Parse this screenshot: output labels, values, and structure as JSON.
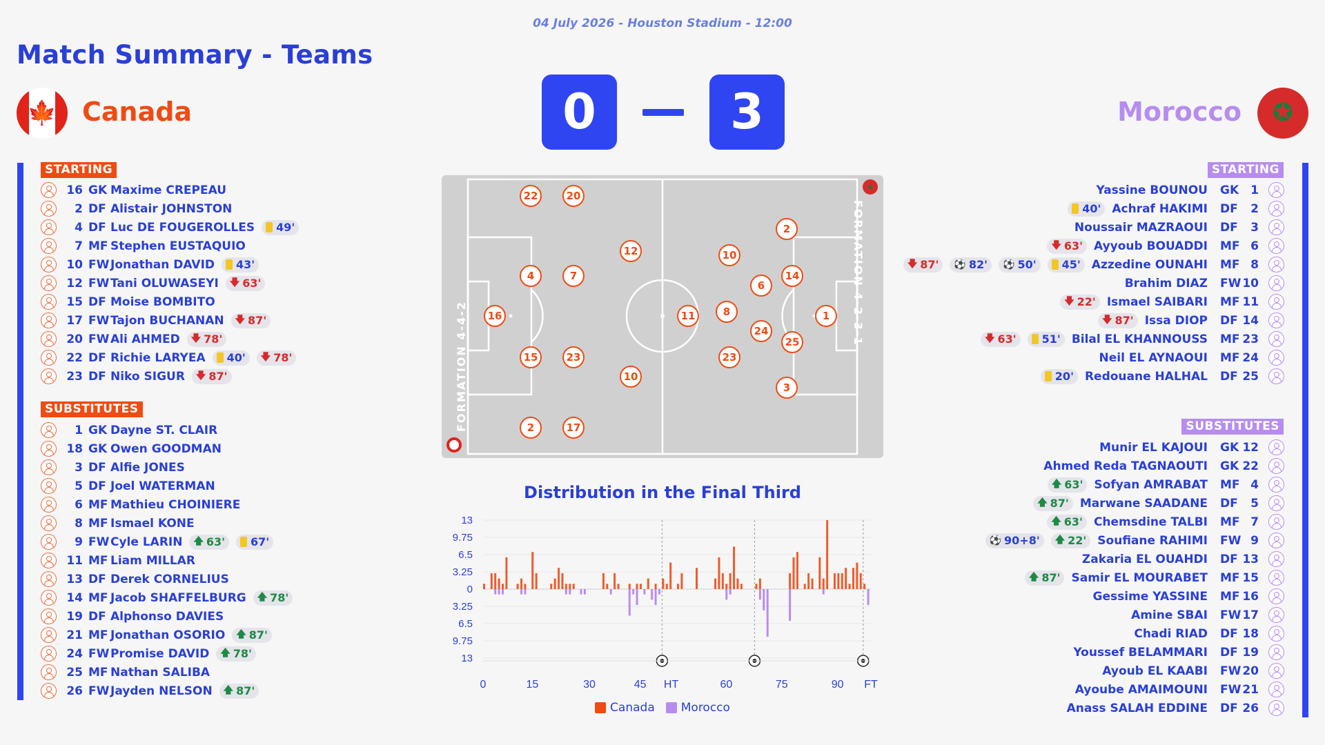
{
  "header": {
    "date_venue": "04 July 2026 - Houston Stadium - 12:00",
    "title": "Match Summary - Teams"
  },
  "home": {
    "name": "Canada",
    "score": "0",
    "formation": "FORMATION 4-4-2",
    "color": "#ef4b12",
    "starting_label": "STARTING",
    "subs_label": "SUBSTITUTES",
    "starting": [
      {
        "num": "16",
        "pos": "GK",
        "name": "Maxime CREPEAU",
        "events": []
      },
      {
        "num": "2",
        "pos": "DF",
        "name": "Alistair JOHNSTON",
        "events": []
      },
      {
        "num": "4",
        "pos": "DF",
        "name": "Luc DE FOUGEROLLES",
        "events": [
          {
            "type": "yellow",
            "text": "49'"
          }
        ]
      },
      {
        "num": "7",
        "pos": "MF",
        "name": "Stephen EUSTAQUIO",
        "events": []
      },
      {
        "num": "10",
        "pos": "FW",
        "name": "Jonathan DAVID",
        "events": [
          {
            "type": "yellow",
            "text": "43'"
          }
        ]
      },
      {
        "num": "12",
        "pos": "FW",
        "name": "Tani OLUWASEYI",
        "events": [
          {
            "type": "sub_out",
            "text": "63'"
          }
        ]
      },
      {
        "num": "15",
        "pos": "DF",
        "name": "Moise BOMBITO",
        "events": []
      },
      {
        "num": "17",
        "pos": "FW",
        "name": "Tajon BUCHANAN",
        "events": [
          {
            "type": "sub_out",
            "text": "87'"
          }
        ]
      },
      {
        "num": "20",
        "pos": "FW",
        "name": "Ali AHMED",
        "events": [
          {
            "type": "sub_out",
            "text": "78'"
          }
        ]
      },
      {
        "num": "22",
        "pos": "DF",
        "name": "Richie LARYEA",
        "events": [
          {
            "type": "yellow",
            "text": "40'"
          },
          {
            "type": "sub_out",
            "text": "78'"
          }
        ]
      },
      {
        "num": "23",
        "pos": "DF",
        "name": "Niko SIGUR",
        "events": [
          {
            "type": "sub_out",
            "text": "87'"
          }
        ]
      }
    ],
    "substitutes": [
      {
        "num": "1",
        "pos": "GK",
        "name": "Dayne ST. CLAIR",
        "events": []
      },
      {
        "num": "18",
        "pos": "GK",
        "name": "Owen GOODMAN",
        "events": []
      },
      {
        "num": "3",
        "pos": "DF",
        "name": "Alfie JONES",
        "events": []
      },
      {
        "num": "5",
        "pos": "DF",
        "name": "Joel WATERMAN",
        "events": []
      },
      {
        "num": "6",
        "pos": "MF",
        "name": "Mathieu CHOINIERE",
        "events": []
      },
      {
        "num": "8",
        "pos": "MF",
        "name": "Ismael KONE",
        "events": []
      },
      {
        "num": "9",
        "pos": "FW",
        "name": "Cyle LARIN",
        "events": [
          {
            "type": "sub_in",
            "text": "63'"
          },
          {
            "type": "yellow",
            "text": "67'"
          }
        ]
      },
      {
        "num": "11",
        "pos": "MF",
        "name": "Liam MILLAR",
        "events": []
      },
      {
        "num": "13",
        "pos": "DF",
        "name": "Derek CORNELIUS",
        "events": []
      },
      {
        "num": "14",
        "pos": "MF",
        "name": "Jacob SHAFFELBURG",
        "events": [
          {
            "type": "sub_in",
            "text": "78'"
          }
        ]
      },
      {
        "num": "19",
        "pos": "DF",
        "name": "Alphonso DAVIES",
        "events": []
      },
      {
        "num": "21",
        "pos": "MF",
        "name": "Jonathan OSORIO",
        "events": [
          {
            "type": "sub_in",
            "text": "87'"
          }
        ]
      },
      {
        "num": "24",
        "pos": "FW",
        "name": "Promise DAVID",
        "events": [
          {
            "type": "sub_in",
            "text": "78'"
          }
        ]
      },
      {
        "num": "25",
        "pos": "MF",
        "name": "Nathan SALIBA",
        "events": []
      },
      {
        "num": "26",
        "pos": "FW",
        "name": "Jayden NELSON",
        "events": [
          {
            "type": "sub_in",
            "text": "87'"
          }
        ]
      }
    ]
  },
  "away": {
    "name": "Morocco",
    "score": "3",
    "formation": "FORMATION 4-2-3-1",
    "color": "#b78cf0",
    "starting_label": "STARTING",
    "subs_label": "SUBSTITUTES",
    "starting": [
      {
        "num": "1",
        "pos": "GK",
        "name": "Yassine BOUNOU",
        "events": []
      },
      {
        "num": "2",
        "pos": "DF",
        "name": "Achraf HAKIMI",
        "events": [
          {
            "type": "yellow",
            "text": "40'"
          }
        ]
      },
      {
        "num": "3",
        "pos": "DF",
        "name": "Noussair MAZRAOUI",
        "events": []
      },
      {
        "num": "6",
        "pos": "MF",
        "name": "Ayyoub BOUADDI",
        "events": [
          {
            "type": "sub_out",
            "text": "63'"
          }
        ]
      },
      {
        "num": "8",
        "pos": "MF",
        "name": "Azzedine OUNAHI",
        "events": [
          {
            "type": "sub_out",
            "text": "87'"
          },
          {
            "type": "goal",
            "text": "82'"
          },
          {
            "type": "goal",
            "text": "50'"
          },
          {
            "type": "yellow",
            "text": "45'"
          }
        ]
      },
      {
        "num": "10",
        "pos": "FW",
        "name": "Brahim DIAZ",
        "events": []
      },
      {
        "num": "11",
        "pos": "MF",
        "name": "Ismael SAIBARI",
        "events": [
          {
            "type": "sub_out",
            "text": "22'"
          }
        ]
      },
      {
        "num": "14",
        "pos": "DF",
        "name": "Issa DIOP",
        "events": [
          {
            "type": "sub_out",
            "text": "87'"
          }
        ]
      },
      {
        "num": "23",
        "pos": "MF",
        "name": "Bilal EL KHANNOUSS",
        "events": [
          {
            "type": "sub_out",
            "text": "63'"
          },
          {
            "type": "yellow",
            "text": "51'"
          }
        ]
      },
      {
        "num": "24",
        "pos": "MF",
        "name": "Neil EL AYNAOUI",
        "events": []
      },
      {
        "num": "25",
        "pos": "DF",
        "name": "Redouane HALHAL",
        "events": [
          {
            "type": "yellow",
            "text": "20'"
          }
        ]
      }
    ],
    "substitutes": [
      {
        "num": "12",
        "pos": "GK",
        "name": "Munir EL KAJOUI",
        "events": []
      },
      {
        "num": "22",
        "pos": "GK",
        "name": "Ahmed Reda TAGNAOUTI",
        "events": []
      },
      {
        "num": "4",
        "pos": "MF",
        "name": "Sofyan AMRABAT",
        "events": [
          {
            "type": "sub_in",
            "text": "63'"
          }
        ]
      },
      {
        "num": "5",
        "pos": "DF",
        "name": "Marwane SAADANE",
        "events": [
          {
            "type": "sub_in",
            "text": "87'"
          }
        ]
      },
      {
        "num": "7",
        "pos": "MF",
        "name": "Chemsdine TALBI",
        "events": [
          {
            "type": "sub_in",
            "text": "63'"
          }
        ]
      },
      {
        "num": "9",
        "pos": "FW",
        "name": "Soufiane RAHIMI",
        "events": [
          {
            "type": "goal",
            "text": "90+8'"
          },
          {
            "type": "sub_in",
            "text": "22'"
          }
        ]
      },
      {
        "num": "13",
        "pos": "DF",
        "name": "Zakaria EL OUAHDI",
        "events": []
      },
      {
        "num": "15",
        "pos": "MF",
        "name": "Samir EL MOURABET",
        "events": [
          {
            "type": "sub_in",
            "text": "87'"
          }
        ]
      },
      {
        "num": "16",
        "pos": "MF",
        "name": "Gessime YASSINE",
        "events": []
      },
      {
        "num": "17",
        "pos": "FW",
        "name": "Amine SBAI",
        "events": []
      },
      {
        "num": "18",
        "pos": "DF",
        "name": "Chadi RIAD",
        "events": []
      },
      {
        "num": "19",
        "pos": "DF",
        "name": "Youssef BELAMMARI",
        "events": []
      },
      {
        "num": "20",
        "pos": "FW",
        "name": "Ayoub EL KAABI",
        "events": []
      },
      {
        "num": "21",
        "pos": "FW",
        "name": "Ayoube AMAIMOUNI",
        "events": []
      },
      {
        "num": "26",
        "pos": "DF",
        "name": "Anass SALAH EDDINE",
        "events": []
      }
    ]
  },
  "chart_data": {
    "type": "bar",
    "title": "Distribution in the Final Third",
    "x_ticks": [
      "0",
      "15",
      "30",
      "45",
      "HT",
      "60",
      "75",
      "90",
      "FT"
    ],
    "y_ticks": [
      "13",
      "9.75",
      "6.5",
      "3.25",
      "0",
      "3.25",
      "6.5",
      "9.75",
      "13"
    ],
    "ylim": [
      -13,
      13
    ],
    "legend": [
      "Canada",
      "Morocco"
    ],
    "colors": {
      "Canada": "#ef5a2a",
      "Morocco": "#b78cf0"
    },
    "goals_markers": [
      "HT",
      "82",
      "FT"
    ],
    "series": [
      {
        "name": "Canada",
        "values": [
          1,
          0,
          3,
          3,
          2,
          1,
          6,
          0,
          0,
          1,
          2,
          1,
          0,
          7,
          3,
          0,
          0,
          0,
          1,
          2,
          4,
          3,
          1,
          1,
          1,
          0,
          0,
          0,
          0,
          0,
          0,
          0,
          3,
          1,
          0,
          3,
          1,
          0,
          0,
          1,
          0,
          1,
          1,
          0,
          2,
          0,
          1,
          0,
          2,
          1,
          5,
          0,
          1,
          3,
          0,
          0,
          0,
          4,
          0,
          0,
          0,
          0,
          2,
          6,
          3,
          1,
          3,
          8,
          2,
          1,
          0,
          0,
          0,
          1,
          2,
          0,
          0,
          0,
          0,
          0,
          0,
          0,
          3,
          6,
          7,
          0,
          1,
          3,
          2,
          0,
          6,
          2,
          13,
          0,
          3,
          3,
          3,
          4,
          1,
          4,
          5,
          3,
          1,
          0
        ]
      },
      {
        "name": "Morocco",
        "values": [
          0,
          0,
          0,
          1,
          1,
          1,
          0,
          0,
          0,
          0,
          1,
          1,
          0,
          0,
          0,
          0,
          0,
          0,
          0,
          0,
          0,
          0,
          1,
          1,
          0,
          0,
          1,
          1,
          0,
          0,
          0,
          0,
          0,
          0,
          1,
          0,
          0,
          0,
          0,
          5,
          1,
          3,
          0,
          1,
          0,
          2,
          3,
          1,
          0,
          0,
          0,
          0,
          0,
          0,
          0,
          0,
          0,
          0,
          0,
          0,
          0,
          0,
          0,
          0,
          0,
          2,
          1,
          0,
          0,
          0,
          0,
          0,
          0,
          0,
          2,
          4,
          9,
          0,
          0,
          0,
          0,
          0,
          6,
          0,
          0,
          0,
          0,
          0,
          0,
          0,
          0,
          1,
          0,
          0,
          0,
          0,
          0,
          0,
          0,
          0,
          0,
          0,
          0,
          3
        ]
      }
    ]
  }
}
